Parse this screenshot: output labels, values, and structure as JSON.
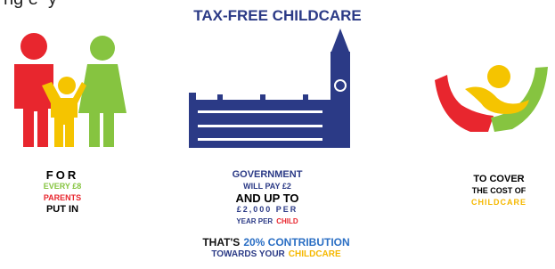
{
  "header": {
    "cropped_text": "ng e  y",
    "title": "TAX-FREE CHILDCARE"
  },
  "panels": [
    {
      "lines": [
        [
          "FOR"
        ],
        [
          "EVERY £8"
        ],
        [
          "PARENTS"
        ],
        [
          "PUT IN"
        ]
      ]
    },
    {
      "lines": [
        [
          "GOVERNMENT"
        ],
        [
          "WILL PAY £2"
        ],
        [
          "AND UP TO"
        ],
        [
          "£2,000 PER"
        ],
        [
          "YEAR PER",
          "CHILD"
        ]
      ]
    },
    {
      "lines": [
        [
          "TO COVER"
        ],
        [
          "THE COST OF"
        ],
        [
          "CHILDCARE"
        ]
      ]
    }
  ],
  "footer": {
    "lines": [
      [
        "THAT'S",
        "20% CONTRIBUTION"
      ],
      [
        "TOWARDS YOUR",
        "CHILDCARE"
      ]
    ]
  }
}
